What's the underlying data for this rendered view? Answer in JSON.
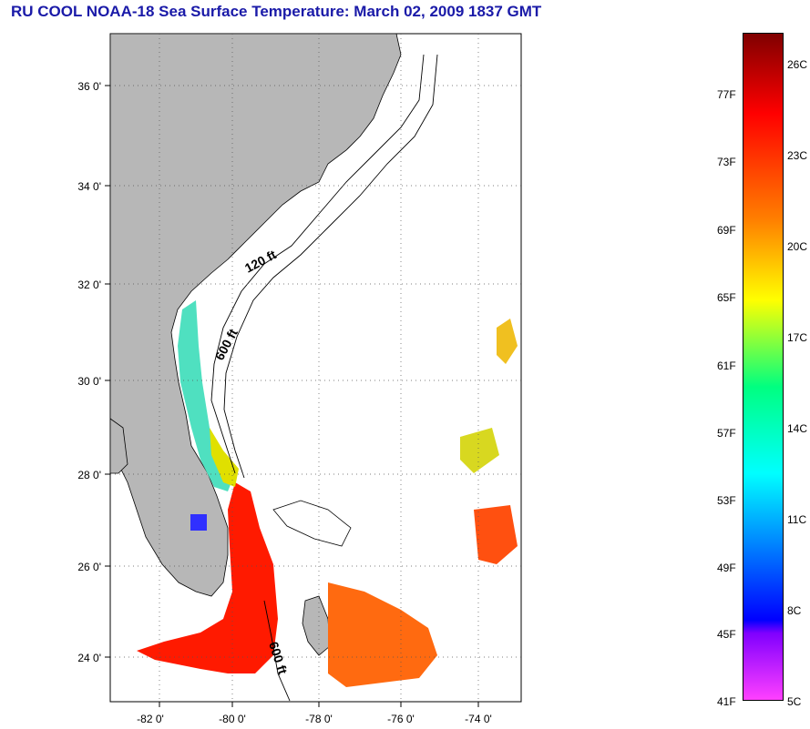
{
  "title": "RU COOL  NOAA-18  Sea Surface Temperature:  March 02, 2009 1837 GMT",
  "map": {
    "lat_ticks": [
      "36 0'",
      "34 0'",
      "32 0'",
      "30 0'",
      "28 0'",
      "26 0'",
      "24 0'"
    ],
    "lon_ticks": [
      "-82 0'",
      "-80 0'",
      "-78 0'",
      "-76 0'",
      "-74 0'"
    ],
    "contour_labels": [
      "120 ft",
      "600 ft",
      "600 ft"
    ]
  },
  "colorbar": {
    "fahrenheit": [
      "77F",
      "73F",
      "69F",
      "65F",
      "61F",
      "57F",
      "53F",
      "49F",
      "45F",
      "41F"
    ],
    "celsius": [
      "26C",
      "23C",
      "20C",
      "17C",
      "14C",
      "11C",
      "8C",
      "5C"
    ],
    "colors": [
      "#800000",
      "#ff0000",
      "#ff8000",
      "#ffff00",
      "#00ff80",
      "#00ffff",
      "#0000ff",
      "#8000ff",
      "#ff40ff"
    ]
  }
}
